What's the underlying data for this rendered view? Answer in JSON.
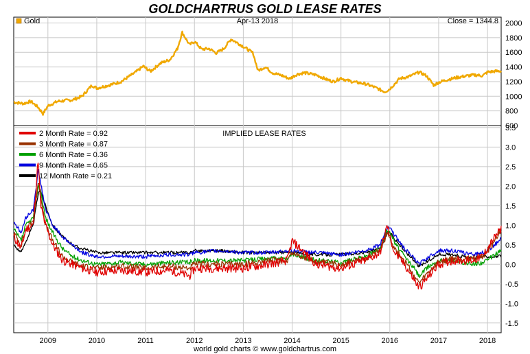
{
  "colors": {
    "title": "#1a1aff",
    "gold": "#f0a800",
    "rate2": "#e00000",
    "rate3": "#993300",
    "rate6": "#00a000",
    "rate9": "#0000e0",
    "rate12": "#000000",
    "grid": "#c8c8c8"
  },
  "chart_data": [
    {
      "type": "line",
      "title": "GOLDCHARTRUS GOLD LEASE RATES",
      "date_label": "Apr-13  2018",
      "series": [
        {
          "name": "Gold",
          "close_label": "Close = 1344.8",
          "x": [
            2008.3,
            2008.5,
            2008.65,
            2008.8,
            2008.9,
            2009.0,
            2009.2,
            2009.5,
            2009.7,
            2009.9,
            2010.0,
            2010.3,
            2010.5,
            2010.8,
            2010.95,
            2011.1,
            2011.3,
            2011.5,
            2011.65,
            2011.75,
            2011.9,
            2012.0,
            2012.15,
            2012.3,
            2012.45,
            2012.6,
            2012.75,
            2012.9,
            2013.0,
            2013.2,
            2013.3,
            2013.45,
            2013.6,
            2013.8,
            2013.95,
            2014.1,
            2014.25,
            2014.5,
            2014.7,
            2014.85,
            2015.0,
            2015.1,
            2015.3,
            2015.5,
            2015.7,
            2015.9,
            2016.0,
            2016.2,
            2016.4,
            2016.6,
            2016.75,
            2016.9,
            2017.0,
            2017.2,
            2017.4,
            2017.6,
            2017.75,
            2017.9,
            2018.0,
            2018.15,
            2018.28
          ],
          "values": [
            920,
            900,
            930,
            850,
            760,
            870,
            930,
            950,
            1000,
            1150,
            1110,
            1160,
            1200,
            1330,
            1410,
            1340,
            1450,
            1500,
            1650,
            1870,
            1700,
            1750,
            1640,
            1650,
            1590,
            1650,
            1780,
            1720,
            1680,
            1590,
            1350,
            1400,
            1320,
            1280,
            1240,
            1300,
            1320,
            1290,
            1230,
            1200,
            1250,
            1220,
            1190,
            1170,
            1120,
            1060,
            1100,
            1240,
            1270,
            1330,
            1280,
            1150,
            1190,
            1230,
            1260,
            1280,
            1290,
            1280,
            1330,
            1340,
            1345
          ]
        }
      ],
      "yticks": [
        600,
        800,
        1000,
        1200,
        1400,
        1600,
        1800,
        2000
      ],
      "ylim": [
        600,
        2080
      ],
      "grid": true
    },
    {
      "type": "line",
      "title": "IMPLIED LEASE RATES",
      "x": [
        2008.3,
        2008.45,
        2008.55,
        2008.7,
        2008.8,
        2008.85,
        2008.95,
        2009.1,
        2009.3,
        2009.5,
        2009.7,
        2010.0,
        2010.5,
        2011.0,
        2011.5,
        2011.9,
        2012.0,
        2012.5,
        2013.0,
        2013.5,
        2013.9,
        2014.0,
        2014.5,
        2015.0,
        2015.5,
        2015.8,
        2015.95,
        2016.0,
        2016.1,
        2016.3,
        2016.5,
        2016.6,
        2016.8,
        2017.0,
        2017.3,
        2017.5,
        2017.7,
        2017.9,
        2018.0,
        2018.1,
        2018.28
      ],
      "series": [
        {
          "name": "2 Month Rate",
          "legend_value": "= 0.92",
          "values": [
            0.7,
            0.4,
            0.9,
            1.0,
            2.7,
            1.5,
            1.0,
            0.5,
            0.1,
            0.0,
            -0.1,
            -0.2,
            -0.15,
            -0.2,
            -0.15,
            -0.3,
            -0.1,
            -0.1,
            -0.1,
            0.0,
            0.1,
            0.6,
            0.0,
            -0.1,
            0.1,
            0.3,
            1.0,
            0.7,
            0.3,
            0.0,
            -0.4,
            -0.6,
            -0.3,
            0.0,
            0.1,
            0.1,
            0.1,
            0.2,
            0.4,
            0.6,
            0.9
          ]
        },
        {
          "name": "3 Month Rate",
          "legend_value": "= 0.87",
          "values": [
            0.8,
            0.5,
            0.9,
            1.1,
            2.1,
            1.8,
            1.0,
            0.6,
            0.2,
            0.05,
            -0.05,
            -0.1,
            -0.05,
            -0.1,
            -0.05,
            -0.1,
            0.0,
            0.0,
            0.0,
            0.1,
            0.1,
            0.3,
            0.05,
            0.0,
            0.15,
            0.35,
            0.8,
            0.7,
            0.4,
            0.1,
            -0.3,
            -0.5,
            -0.2,
            0.05,
            0.15,
            0.15,
            0.15,
            0.2,
            0.35,
            0.5,
            0.87
          ]
        },
        {
          "name": "6 Month Rate",
          "legend_value": "= 0.36",
          "values": [
            0.9,
            0.6,
            1.0,
            1.2,
            2.0,
            1.9,
            1.2,
            0.8,
            0.4,
            0.2,
            0.1,
            0.0,
            0.05,
            0.0,
            0.05,
            0.05,
            0.1,
            0.1,
            0.1,
            0.15,
            0.15,
            0.25,
            0.1,
            0.05,
            0.2,
            0.4,
            0.9,
            0.85,
            0.55,
            0.2,
            -0.1,
            -0.3,
            -0.05,
            0.1,
            0.1,
            0.05,
            0.0,
            0.05,
            0.1,
            0.2,
            0.36
          ]
        },
        {
          "name": "9 Month Rate",
          "legend_value": "= 0.65",
          "values": [
            1.1,
            0.8,
            1.2,
            1.4,
            2.4,
            2.1,
            1.4,
            1.0,
            0.7,
            0.5,
            0.3,
            0.2,
            0.2,
            0.2,
            0.25,
            0.25,
            0.3,
            0.35,
            0.3,
            0.3,
            0.35,
            0.35,
            0.3,
            0.25,
            0.35,
            0.5,
            0.95,
            0.95,
            0.75,
            0.4,
            0.15,
            0.0,
            0.2,
            0.35,
            0.35,
            0.3,
            0.25,
            0.3,
            0.35,
            0.45,
            0.65
          ]
        },
        {
          "name": "12 Month Rate",
          "legend_value": "= 0.21",
          "values": [
            0.5,
            0.3,
            0.6,
            1.0,
            1.8,
            1.9,
            1.5,
            1.0,
            0.7,
            0.5,
            0.4,
            0.3,
            0.3,
            0.3,
            0.3,
            0.3,
            0.35,
            0.35,
            0.3,
            0.3,
            0.3,
            0.3,
            0.25,
            0.25,
            0.3,
            0.4,
            0.8,
            0.85,
            0.65,
            0.35,
            0.1,
            -0.05,
            0.1,
            0.25,
            0.25,
            0.2,
            0.15,
            0.2,
            0.2,
            0.2,
            0.21
          ]
        }
      ],
      "yticks": [
        -1.5,
        -1.0,
        -0.5,
        0.0,
        0.5,
        1.0,
        1.5,
        2.0,
        2.5,
        3.0,
        3.5
      ],
      "ylim": [
        -1.75,
        3.55
      ],
      "grid": true,
      "legend_position": "top-left"
    }
  ],
  "xaxis": {
    "ticks": [
      2009,
      2010,
      2011,
      2012,
      2013,
      2014,
      2015,
      2016,
      2017,
      2018
    ],
    "labels": [
      "2009",
      "2010",
      "2011",
      "2012",
      "2013",
      "2014",
      "2015",
      "2016",
      "2017",
      "2018"
    ],
    "xlim": [
      2008.3,
      2018.28
    ]
  },
  "footer": "world gold charts © www.goldchartrus.com"
}
